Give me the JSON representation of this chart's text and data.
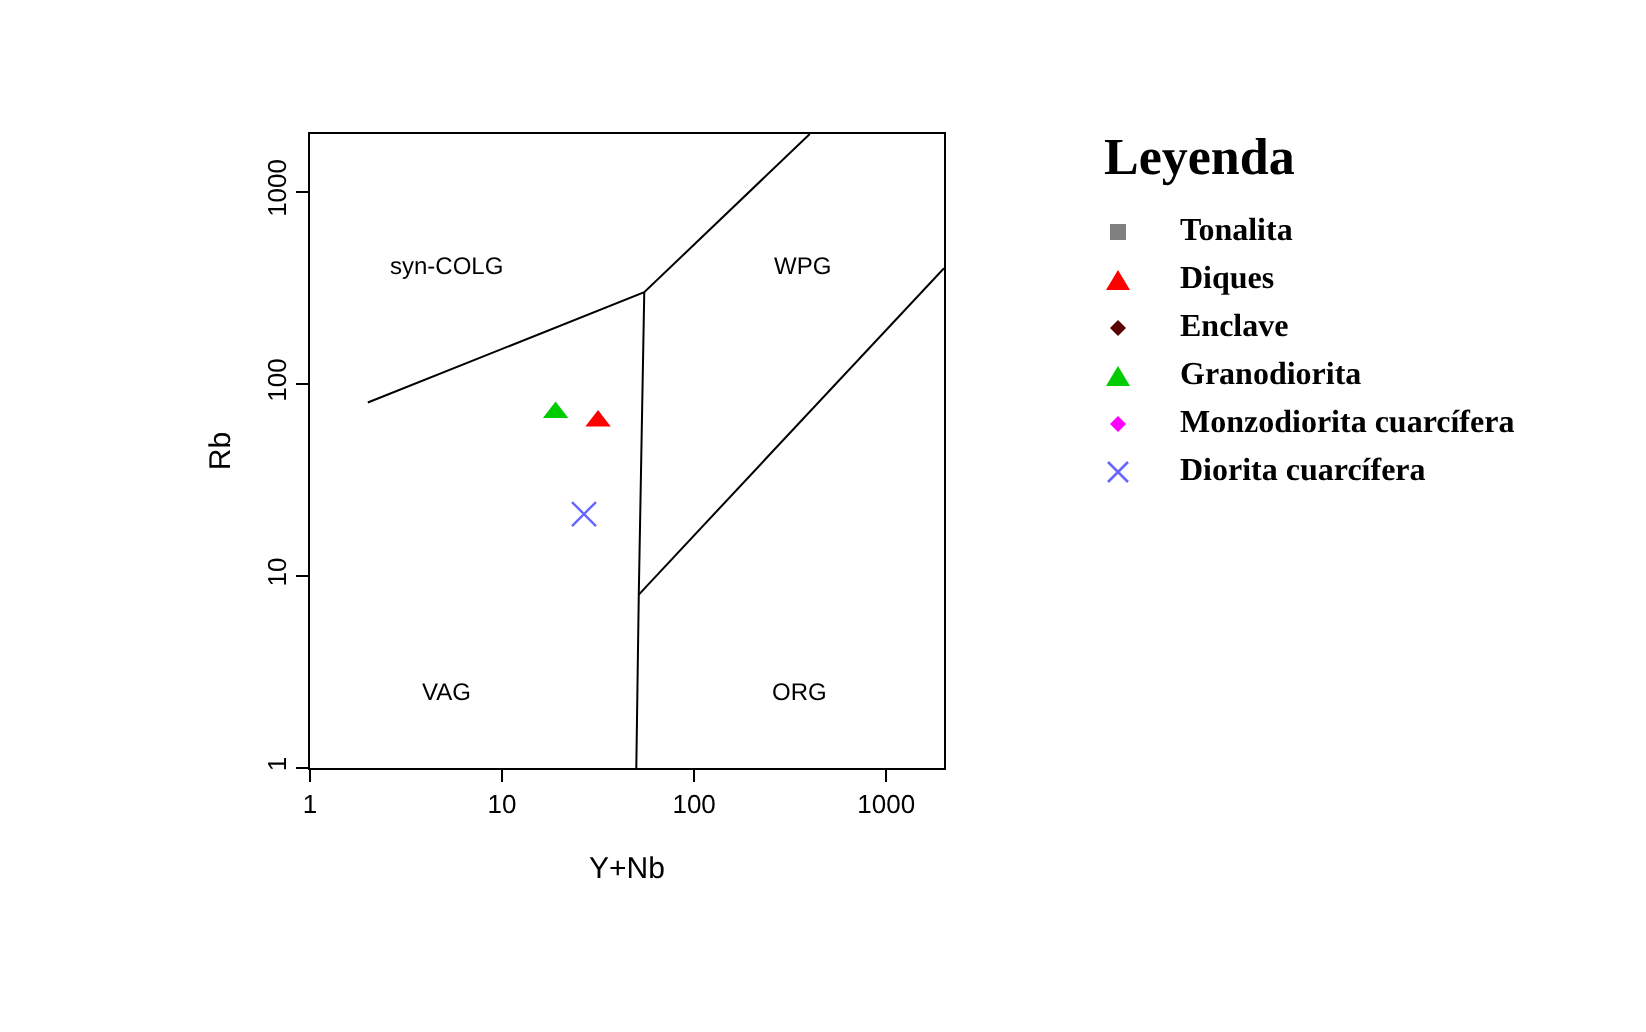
{
  "chart_data": {
    "type": "scatter",
    "xlabel": "Y+Nb",
    "ylabel": "Rb",
    "legend_title": "Leyenda",
    "log": "xy",
    "xlim": [
      1,
      2000
    ],
    "ylim": [
      1,
      2000
    ],
    "xticks": [
      1,
      10,
      100,
      1000
    ],
    "yticks": [
      1,
      10,
      100,
      1000
    ],
    "grid": false,
    "legend": "right",
    "series": [
      {
        "name": "Tonalita",
        "color": "#808080",
        "marker": "square"
      },
      {
        "name": "Diques",
        "color": "#ff0000",
        "marker": "triangle",
        "x": [
          31.6
        ],
        "values": [
          64
        ]
      },
      {
        "name": "Enclave",
        "color": "#5a0000",
        "marker": "diamond"
      },
      {
        "name": "Granodiorita",
        "color": "#00cc00",
        "marker": "triangle",
        "x": [
          19
        ],
        "values": [
          71
        ]
      },
      {
        "name": "Monzodiorita cuarcífera",
        "color": "#ff00ff",
        "marker": "diamond"
      },
      {
        "name": "Diorita cuarcífera",
        "color": "#6666ff",
        "marker": "cross",
        "x": [
          26.7
        ],
        "values": [
          21
        ]
      },
      {
        "type": "line",
        "color": "#000000",
        "line_style": "solid",
        "marker": "none",
        "x": [
          2,
          55,
          400,
          null,
          55,
          51.5,
          50,
          null,
          51.5,
          2000
        ],
        "values": [
          80,
          300,
          2000,
          null,
          300,
          8,
          1,
          null,
          8,
          400
        ]
      }
    ],
    "annotations": [
      "syn-COLG",
      "WPG",
      "VAG",
      "ORG"
    ]
  }
}
